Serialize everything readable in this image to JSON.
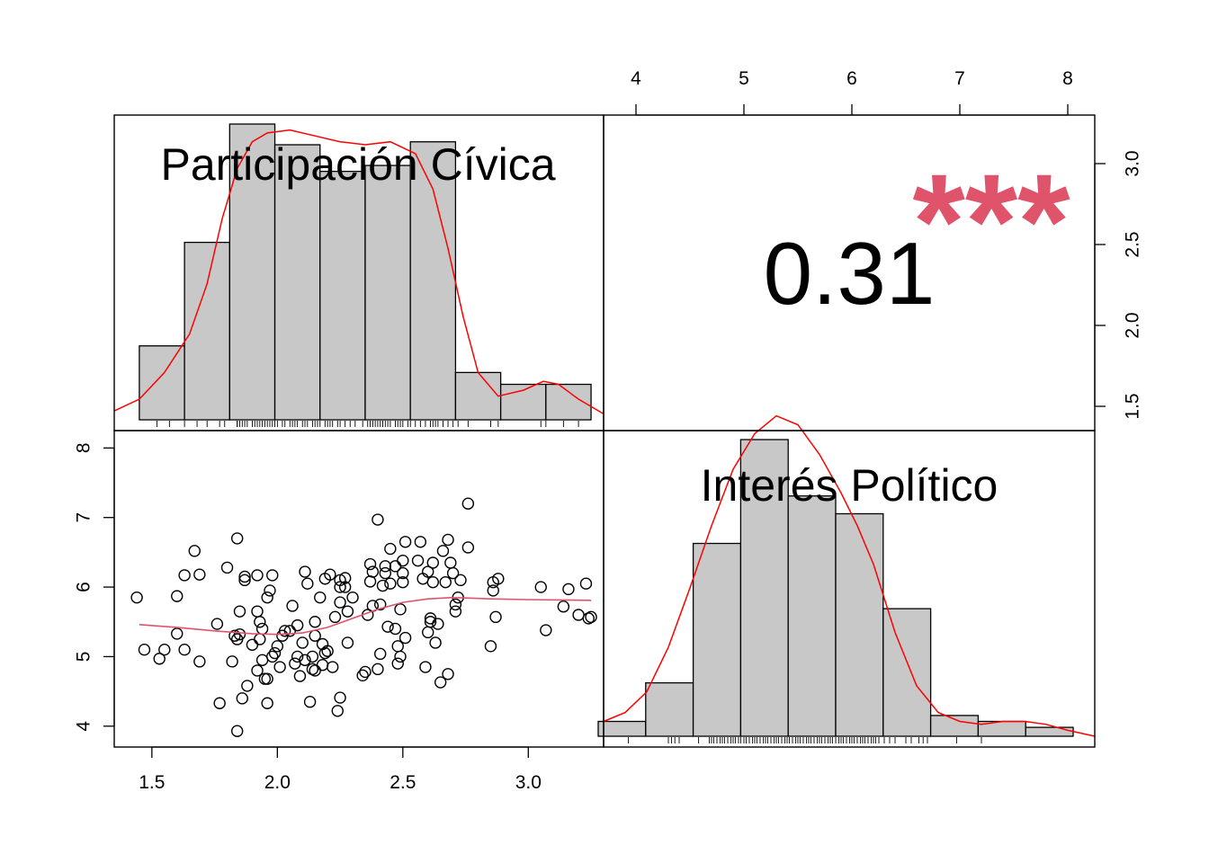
{
  "chart_data": {
    "type": "scatter-matrix",
    "variables": [
      "Participación Cívica",
      "Interés Político"
    ],
    "correlation": {
      "value": "0.31",
      "stars": "***",
      "star_color": "#DF536B"
    },
    "colors": {
      "bar_fill": "#C8C8C8",
      "density_line": "#FF0000",
      "smooth_line": "#DF536B",
      "points": "#000000"
    },
    "axes": {
      "participacion": {
        "range": [
          1.35,
          3.3
        ],
        "ticks": [
          1.5,
          2.0,
          2.5,
          3.0
        ],
        "tick_labels": [
          "1.5",
          "2.0",
          "2.5",
          "3.0"
        ]
      },
      "interes": {
        "range": [
          3.7,
          8.25
        ],
        "ticks": [
          4,
          5,
          6,
          7,
          8
        ],
        "tick_labels": [
          "4",
          "5",
          "6",
          "7",
          "8"
        ]
      }
    },
    "hist_participacion": {
      "breaks": [
        1.45,
        1.63,
        1.81,
        1.99,
        2.17,
        2.35,
        2.53,
        2.71,
        2.89,
        3.07,
        3.25
      ],
      "heights": [
        0.25,
        0.6,
        1.0,
        0.93,
        0.84,
        0.86,
        0.94,
        0.16,
        0.12,
        0.12
      ],
      "density": [
        [
          1.35,
          0.03
        ],
        [
          1.45,
          0.07
        ],
        [
          1.55,
          0.16
        ],
        [
          1.65,
          0.29
        ],
        [
          1.72,
          0.46
        ],
        [
          1.78,
          0.68
        ],
        [
          1.84,
          0.85
        ],
        [
          1.9,
          0.94
        ],
        [
          1.96,
          0.97
        ],
        [
          2.05,
          0.98
        ],
        [
          2.15,
          0.96
        ],
        [
          2.25,
          0.94
        ],
        [
          2.35,
          0.93
        ],
        [
          2.45,
          0.94
        ],
        [
          2.55,
          0.9
        ],
        [
          2.62,
          0.78
        ],
        [
          2.68,
          0.58
        ],
        [
          2.74,
          0.35
        ],
        [
          2.8,
          0.16
        ],
        [
          2.88,
          0.08
        ],
        [
          2.98,
          0.1
        ],
        [
          3.06,
          0.13
        ],
        [
          3.12,
          0.12
        ],
        [
          3.2,
          0.07
        ],
        [
          3.3,
          0.02
        ]
      ],
      "rug": [
        1.52,
        1.57,
        1.63,
        1.68,
        1.72,
        1.77,
        1.79,
        1.84,
        1.84,
        1.85,
        1.86,
        1.87,
        1.88,
        1.9,
        1.91,
        1.92,
        1.93,
        1.94,
        1.95,
        1.96,
        1.97,
        1.98,
        1.99,
        2.0,
        2.02,
        2.03,
        2.05,
        2.06,
        2.07,
        2.08,
        2.1,
        2.11,
        2.12,
        2.14,
        2.15,
        2.16,
        2.17,
        2.19,
        2.2,
        2.21,
        2.22,
        2.24,
        2.25,
        2.27,
        2.29,
        2.31,
        2.34,
        2.36,
        2.37,
        2.38,
        2.39,
        2.4,
        2.41,
        2.42,
        2.43,
        2.44,
        2.45,
        2.47,
        2.48,
        2.49,
        2.5,
        2.52,
        2.53,
        2.55,
        2.57,
        2.59,
        2.61,
        2.62,
        2.63,
        2.64,
        2.66,
        2.68,
        2.7,
        2.72,
        2.76,
        2.85,
        2.88,
        3.05,
        3.07,
        3.14,
        3.2
      ]
    },
    "hist_interes": {
      "breaks": [
        3.65,
        4.09,
        4.53,
        4.97,
        5.41,
        5.85,
        6.29,
        6.73,
        7.17,
        7.61,
        8.05
      ],
      "heights": [
        0.05,
        0.18,
        0.65,
        1.0,
        0.81,
        0.75,
        0.43,
        0.07,
        0.05,
        0.03
      ],
      "density": [
        [
          3.7,
          0.05
        ],
        [
          3.9,
          0.08
        ],
        [
          4.1,
          0.15
        ],
        [
          4.3,
          0.3
        ],
        [
          4.5,
          0.5
        ],
        [
          4.7,
          0.71
        ],
        [
          4.9,
          0.9
        ],
        [
          5.1,
          1.02
        ],
        [
          5.3,
          1.08
        ],
        [
          5.5,
          1.05
        ],
        [
          5.7,
          0.95
        ],
        [
          5.9,
          0.82
        ],
        [
          6.05,
          0.71
        ],
        [
          6.2,
          0.58
        ],
        [
          6.4,
          0.35
        ],
        [
          6.6,
          0.17
        ],
        [
          6.8,
          0.08
        ],
        [
          7.0,
          0.05
        ],
        [
          7.2,
          0.04
        ],
        [
          7.4,
          0.05
        ],
        [
          7.6,
          0.05
        ],
        [
          7.8,
          0.04
        ],
        [
          8.0,
          0.02
        ],
        [
          8.25,
          0.0
        ]
      ],
      "rug": [
        3.93,
        4.3,
        4.33,
        4.36,
        4.4,
        4.58,
        4.68,
        4.7,
        4.72,
        4.75,
        4.78,
        4.8,
        4.82,
        4.85,
        4.88,
        4.9,
        4.92,
        4.95,
        4.97,
        5.0,
        5.02,
        5.05,
        5.08,
        5.1,
        5.12,
        5.15,
        5.18,
        5.2,
        5.22,
        5.25,
        5.28,
        5.3,
        5.32,
        5.35,
        5.38,
        5.4,
        5.42,
        5.45,
        5.48,
        5.5,
        5.52,
        5.55,
        5.58,
        5.6,
        5.62,
        5.65,
        5.68,
        5.7,
        5.72,
        5.75,
        5.78,
        5.8,
        5.82,
        5.85,
        5.88,
        5.9,
        5.92,
        5.95,
        5.98,
        6.0,
        6.02,
        6.05,
        6.08,
        6.1,
        6.12,
        6.15,
        6.18,
        6.2,
        6.22,
        6.25,
        6.3,
        6.35,
        6.4,
        6.5,
        6.55,
        6.62,
        6.66,
        6.7,
        6.97,
        7.2
      ]
    },
    "scatter": {
      "points": [
        [
          1.44,
          5.85
        ],
        [
          1.47,
          5.1
        ],
        [
          1.53,
          4.97
        ],
        [
          1.55,
          5.1
        ],
        [
          1.6,
          5.33
        ],
        [
          1.6,
          5.87
        ],
        [
          1.63,
          6.17
        ],
        [
          1.63,
          5.1
        ],
        [
          1.67,
          6.52
        ],
        [
          1.69,
          6.18
        ],
        [
          1.69,
          4.93
        ],
        [
          1.76,
          5.47
        ],
        [
          1.77,
          4.33
        ],
        [
          1.8,
          6.28
        ],
        [
          1.82,
          4.93
        ],
        [
          1.83,
          5.3
        ],
        [
          1.84,
          6.7
        ],
        [
          1.84,
          3.93
        ],
        [
          1.84,
          5.25
        ],
        [
          1.85,
          5.32
        ],
        [
          1.85,
          5.65
        ],
        [
          1.86,
          4.4
        ],
        [
          1.87,
          6.1
        ],
        [
          1.87,
          6.15
        ],
        [
          1.88,
          4.58
        ],
        [
          1.9,
          5.17
        ],
        [
          1.92,
          5.65
        ],
        [
          1.92,
          4.8
        ],
        [
          1.92,
          6.17
        ],
        [
          1.93,
          5.5
        ],
        [
          1.93,
          5.25
        ],
        [
          1.94,
          4.95
        ],
        [
          1.94,
          5.4
        ],
        [
          1.95,
          4.68
        ],
        [
          1.96,
          4.68
        ],
        [
          1.96,
          4.33
        ],
        [
          1.96,
          5.85
        ],
        [
          1.97,
          5.95
        ],
        [
          1.98,
          5.0
        ],
        [
          1.98,
          6.17
        ],
        [
          1.99,
          5.05
        ],
        [
          2.0,
          5.15
        ],
        [
          2.01,
          4.85
        ],
        [
          2.02,
          5.3
        ],
        [
          2.03,
          5.37
        ],
        [
          2.05,
          5.37
        ],
        [
          2.06,
          5.73
        ],
        [
          2.07,
          4.9
        ],
        [
          2.08,
          5.0
        ],
        [
          2.08,
          5.45
        ],
        [
          2.09,
          4.72
        ],
        [
          2.1,
          5.2
        ],
        [
          2.11,
          4.95
        ],
        [
          2.11,
          6.22
        ],
        [
          2.12,
          6.05
        ],
        [
          2.13,
          4.35
        ],
        [
          2.14,
          4.82
        ],
        [
          2.14,
          5.0
        ],
        [
          2.15,
          5.5
        ],
        [
          2.15,
          4.8
        ],
        [
          2.15,
          5.3
        ],
        [
          2.17,
          5.85
        ],
        [
          2.18,
          4.88
        ],
        [
          2.18,
          5.18
        ],
        [
          2.19,
          5.05
        ],
        [
          2.19,
          6.12
        ],
        [
          2.2,
          5.08
        ],
        [
          2.21,
          6.18
        ],
        [
          2.22,
          4.85
        ],
        [
          2.23,
          5.57
        ],
        [
          2.24,
          4.22
        ],
        [
          2.25,
          4.41
        ],
        [
          2.25,
          6.0
        ],
        [
          2.25,
          6.1
        ],
        [
          2.25,
          5.78
        ],
        [
          2.27,
          6.0
        ],
        [
          2.27,
          6.13
        ],
        [
          2.28,
          5.2
        ],
        [
          2.28,
          5.65
        ],
        [
          2.3,
          5.85
        ],
        [
          2.34,
          4.73
        ],
        [
          2.35,
          4.78
        ],
        [
          2.36,
          5.6
        ],
        [
          2.37,
          6.08
        ],
        [
          2.37,
          6.33
        ],
        [
          2.38,
          5.73
        ],
        [
          2.38,
          6.22
        ],
        [
          2.4,
          6.97
        ],
        [
          2.4,
          4.82
        ],
        [
          2.41,
          5.75
        ],
        [
          2.41,
          5.04
        ],
        [
          2.42,
          6.02
        ],
        [
          2.43,
          6.2
        ],
        [
          2.43,
          6.3
        ],
        [
          2.44,
          5.43
        ],
        [
          2.45,
          6.55
        ],
        [
          2.45,
          6.05
        ],
        [
          2.47,
          6.3
        ],
        [
          2.47,
          5.4
        ],
        [
          2.48,
          4.9
        ],
        [
          2.48,
          5.15
        ],
        [
          2.49,
          5.0
        ],
        [
          2.49,
          5.68
        ],
        [
          2.5,
          6.2
        ],
        [
          2.5,
          6.38
        ],
        [
          2.5,
          6.07
        ],
        [
          2.51,
          5.27
        ],
        [
          2.51,
          6.65
        ],
        [
          2.56,
          6.38
        ],
        [
          2.57,
          6.65
        ],
        [
          2.58,
          6.12
        ],
        [
          2.59,
          4.85
        ],
        [
          2.6,
          6.22
        ],
        [
          2.6,
          5.35
        ],
        [
          2.61,
          5.55
        ],
        [
          2.61,
          5.5
        ],
        [
          2.62,
          6.07
        ],
        [
          2.62,
          6.35
        ],
        [
          2.63,
          5.2
        ],
        [
          2.64,
          5.47
        ],
        [
          2.65,
          4.63
        ],
        [
          2.66,
          6.52
        ],
        [
          2.67,
          6.07
        ],
        [
          2.68,
          6.68
        ],
        [
          2.68,
          4.75
        ],
        [
          2.69,
          6.35
        ],
        [
          2.7,
          6.2
        ],
        [
          2.71,
          5.65
        ],
        [
          2.71,
          5.75
        ],
        [
          2.72,
          5.85
        ],
        [
          2.73,
          6.1
        ],
        [
          2.76,
          7.2
        ],
        [
          2.76,
          6.57
        ],
        [
          2.85,
          5.15
        ],
        [
          2.86,
          5.95
        ],
        [
          2.86,
          6.07
        ],
        [
          2.87,
          5.57
        ],
        [
          2.88,
          6.12
        ],
        [
          3.05,
          6.0
        ],
        [
          3.07,
          5.38
        ],
        [
          3.14,
          5.72
        ],
        [
          3.16,
          5.97
        ],
        [
          3.2,
          5.6
        ],
        [
          3.23,
          6.05
        ],
        [
          3.24,
          5.55
        ],
        [
          3.25,
          5.57
        ]
      ],
      "smooth": [
        [
          1.45,
          5.46
        ],
        [
          1.6,
          5.42
        ],
        [
          1.75,
          5.37
        ],
        [
          1.9,
          5.33
        ],
        [
          2.0,
          5.32
        ],
        [
          2.1,
          5.34
        ],
        [
          2.2,
          5.42
        ],
        [
          2.3,
          5.55
        ],
        [
          2.4,
          5.68
        ],
        [
          2.5,
          5.78
        ],
        [
          2.6,
          5.83
        ],
        [
          2.7,
          5.85
        ],
        [
          2.85,
          5.83
        ],
        [
          3.0,
          5.82
        ],
        [
          3.25,
          5.81
        ]
      ]
    }
  }
}
